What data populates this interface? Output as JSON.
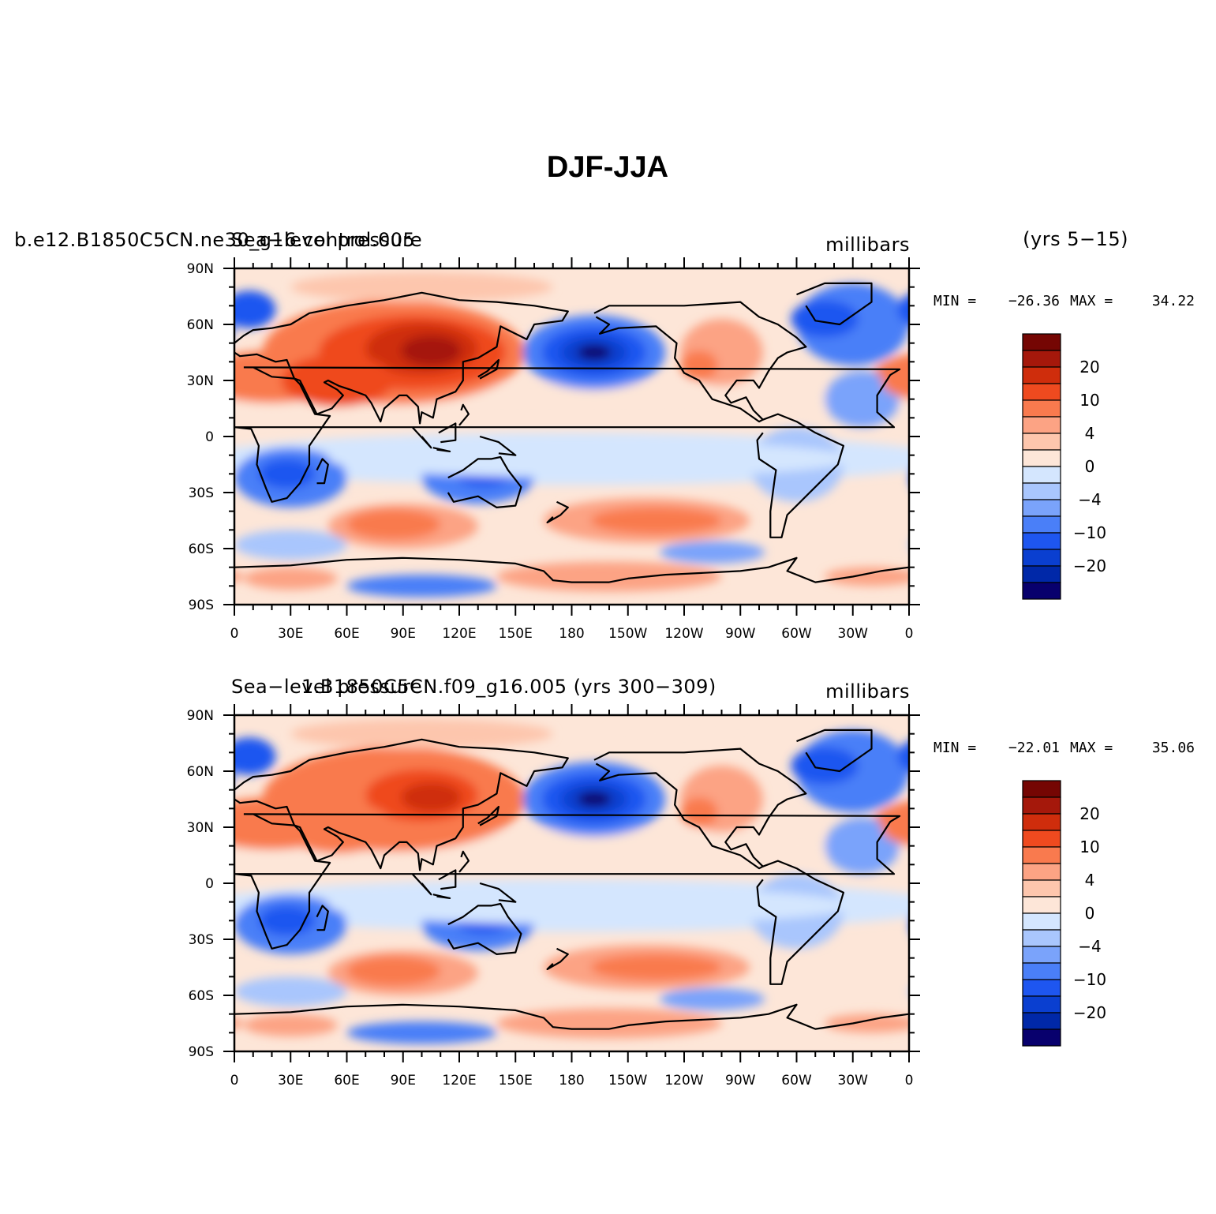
{
  "title": "DJF-JJA",
  "colors": [
    "#08006d",
    "#0028a8",
    "#0a3fd0",
    "#1e56f0",
    "#4a7ff8",
    "#7aa3fb",
    "#a9c6fd",
    "#d4e6fe",
    "#fde6d8",
    "#fdc6ad",
    "#fca384",
    "#f97a4e",
    "#ef4a1f",
    "#cf2d0c",
    "#a5180b",
    "#750603"
  ],
  "label_levels": [
    "20",
    "10",
    "4",
    "0",
    "−4",
    "−10",
    "−20"
  ],
  "panels": [
    {
      "left_title": "b.e12.B1850C5CN.ne30_g16.control.005",
      "center_title": "Sea−level pressure",
      "right_title": "millibars",
      "extra_title": "(yrs 5−15)",
      "min_label": "MIN =",
      "min_value": "−26.36",
      "max_label": "MAX =",
      "max_value": "34.22"
    },
    {
      "left_title": "",
      "center_title": "Sea−level pressure",
      "overlay_title": "1.B1850C5CN.f09_g16.005  (yrs 300−309)",
      "right_title": "millibars",
      "min_label": "MIN =",
      "min_value": "−22.01",
      "max_label": "MAX =",
      "max_value": "35.06"
    }
  ],
  "lat_labels": [
    "90N",
    "60N",
    "30N",
    "0",
    "30S",
    "60S",
    "90S"
  ],
  "lon_labels": [
    "0",
    "30E",
    "60E",
    "90E",
    "120E",
    "150E",
    "180",
    "150W",
    "120W",
    "90W",
    "60W",
    "30W",
    "0"
  ]
}
